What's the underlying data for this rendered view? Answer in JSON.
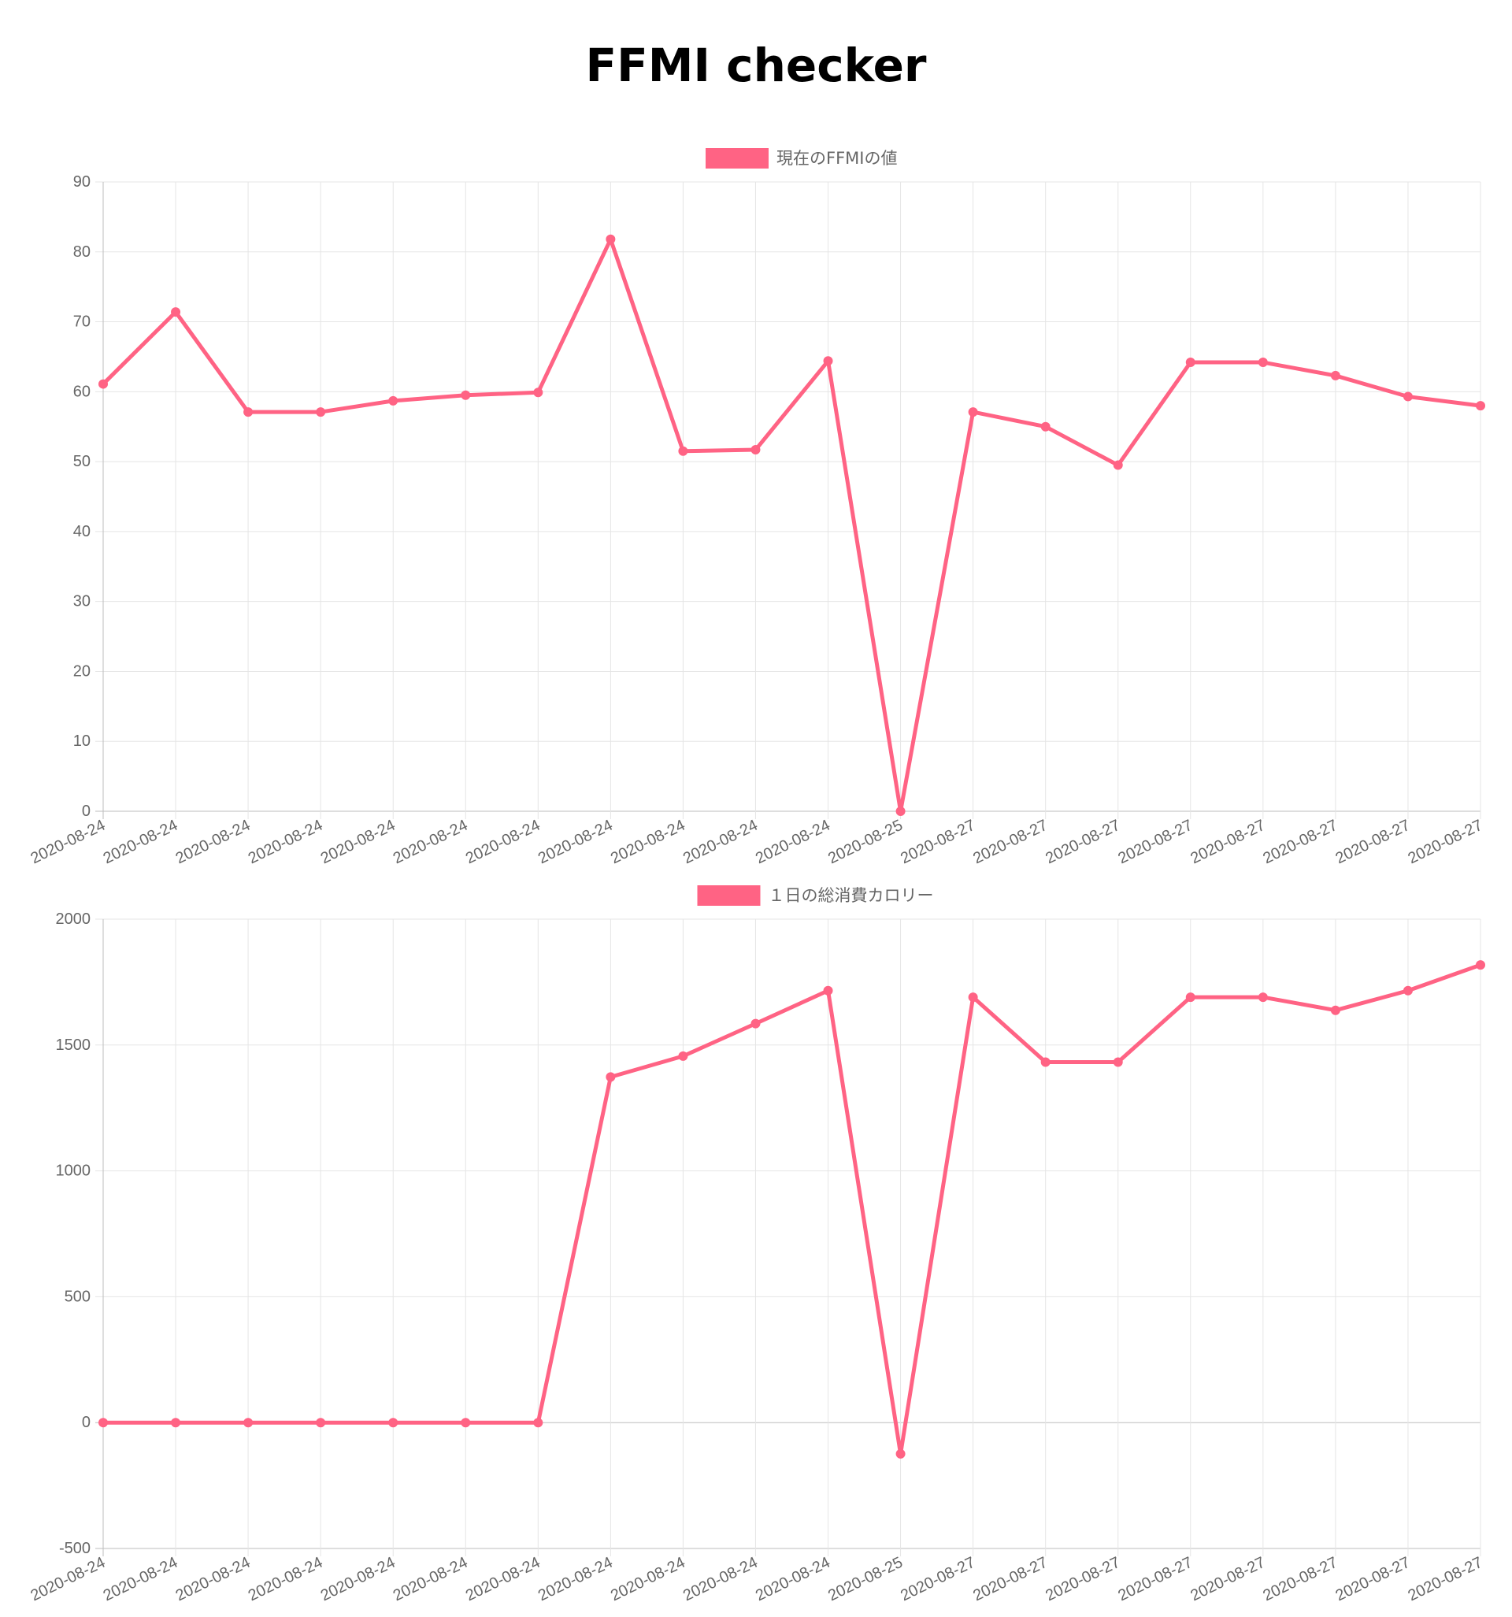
{
  "page": {
    "title": "FFMI checker"
  },
  "colors": {
    "series": "#ff6384",
    "grid": "#e5e5e5",
    "axis": "#bdbdbd",
    "tick_text": "#666666"
  },
  "chart_data": [
    {
      "type": "line",
      "title": "",
      "xlabel": "",
      "ylabel": "",
      "legend": "top-center",
      "grid": true,
      "categories": [
        "2020-08-24",
        "2020-08-24",
        "2020-08-24",
        "2020-08-24",
        "2020-08-24",
        "2020-08-24",
        "2020-08-24",
        "2020-08-24",
        "2020-08-24",
        "2020-08-24",
        "2020-08-24",
        "2020-08-25",
        "2020-08-27",
        "2020-08-27",
        "2020-08-27",
        "2020-08-27",
        "2020-08-27",
        "2020-08-27",
        "2020-08-27",
        "2020-08-27"
      ],
      "ylim": [
        0,
        90
      ],
      "ystep": 10,
      "series": [
        {
          "name": "現在のFFMIの値",
          "values": [
            61.1,
            71.4,
            57.1,
            57.1,
            58.7,
            59.5,
            59.9,
            81.8,
            51.5,
            51.7,
            64.4,
            0,
            57.1,
            55.0,
            49.5,
            64.2,
            64.2,
            62.3,
            59.3,
            58.0
          ]
        }
      ]
    },
    {
      "type": "line",
      "title": "",
      "xlabel": "",
      "ylabel": "",
      "legend": "top-center",
      "grid": true,
      "categories": [
        "2020-08-24",
        "2020-08-24",
        "2020-08-24",
        "2020-08-24",
        "2020-08-24",
        "2020-08-24",
        "2020-08-24",
        "2020-08-24",
        "2020-08-24",
        "2020-08-24",
        "2020-08-24",
        "2020-08-25",
        "2020-08-27",
        "2020-08-27",
        "2020-08-27",
        "2020-08-27",
        "2020-08-27",
        "2020-08-27",
        "2020-08-27",
        "2020-08-27"
      ],
      "ylim": [
        -500,
        2000
      ],
      "ystep": 500,
      "series": [
        {
          "name": "１日の総消費カロリー",
          "values": [
            0,
            0,
            0,
            0,
            0,
            0,
            0,
            1373,
            1456,
            1585,
            1716,
            -124,
            1690,
            1432,
            1432,
            1690,
            1690,
            1638,
            1716,
            1818
          ]
        }
      ]
    }
  ]
}
